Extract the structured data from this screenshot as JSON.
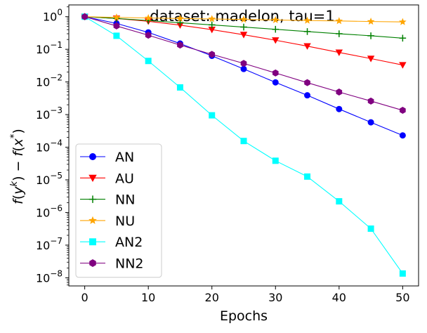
{
  "chart_data": {
    "type": "line",
    "title": "dataset: madelon, tau=1",
    "xlabel": "Epochs",
    "ylabel": "f(y^k) − f(x*)",
    "yscale": "log",
    "xlim": [
      -2.5,
      52.5
    ],
    "ylim_log10": [
      -8.25,
      0.36
    ],
    "x_ticks": [
      0,
      10,
      20,
      30,
      40,
      50
    ],
    "x_tick_labels": [
      "0",
      "10",
      "20",
      "30",
      "40",
      "50"
    ],
    "y_tick_exponents": [
      0,
      -1,
      -2,
      -3,
      -4,
      -5,
      -6,
      -7,
      -8
    ],
    "y_tick_base": "10",
    "legend_position": "lower-left",
    "series": [
      {
        "name": "AN",
        "color": "#0000ff",
        "marker": "circle",
        "x": [
          0,
          5,
          10,
          15,
          20,
          25,
          30,
          35,
          40,
          45,
          50
        ],
        "y": [
          1.0,
          0.62,
          0.33,
          0.15,
          0.063,
          0.025,
          0.0097,
          0.0039,
          0.00148,
          0.00058,
          0.00023
        ]
      },
      {
        "name": "AU",
        "color": "#ff0000",
        "marker": "triangle-down",
        "x": [
          0,
          5,
          10,
          15,
          20,
          25,
          30,
          35,
          40,
          45,
          50
        ],
        "y": [
          1.0,
          0.88,
          0.72,
          0.55,
          0.4,
          0.28,
          0.19,
          0.125,
          0.08,
          0.052,
          0.033
        ]
      },
      {
        "name": "NN",
        "color": "#008000",
        "marker": "plus",
        "x": [
          0,
          5,
          10,
          15,
          20,
          25,
          30,
          35,
          40,
          45,
          50
        ],
        "y": [
          1.0,
          0.88,
          0.76,
          0.65,
          0.56,
          0.48,
          0.41,
          0.35,
          0.3,
          0.26,
          0.22
        ]
      },
      {
        "name": "NU",
        "color": "#ffa500",
        "marker": "star",
        "x": [
          0,
          5,
          10,
          15,
          20,
          25,
          30,
          35,
          40,
          45,
          50
        ],
        "y": [
          1.0,
          0.95,
          0.91,
          0.88,
          0.85,
          0.82,
          0.79,
          0.76,
          0.74,
          0.71,
          0.69
        ]
      },
      {
        "name": "AN2",
        "color": "#00ffff",
        "marker": "square",
        "x": [
          0,
          5,
          10,
          15,
          20,
          25,
          30,
          35,
          40,
          45,
          50
        ],
        "y": [
          1.0,
          0.26,
          0.044,
          0.0068,
          0.00095,
          0.000155,
          3.85e-05,
          1.26e-05,
          2.2e-06,
          3.2e-07,
          1.35e-08
        ]
      },
      {
        "name": "NN2",
        "color": "#800080",
        "marker": "hexagon",
        "x": [
          0,
          5,
          10,
          15,
          20,
          25,
          30,
          35,
          40,
          45,
          50
        ],
        "y": [
          1.0,
          0.52,
          0.27,
          0.135,
          0.07,
          0.037,
          0.0188,
          0.0095,
          0.0049,
          0.0026,
          0.00135
        ]
      }
    ]
  }
}
